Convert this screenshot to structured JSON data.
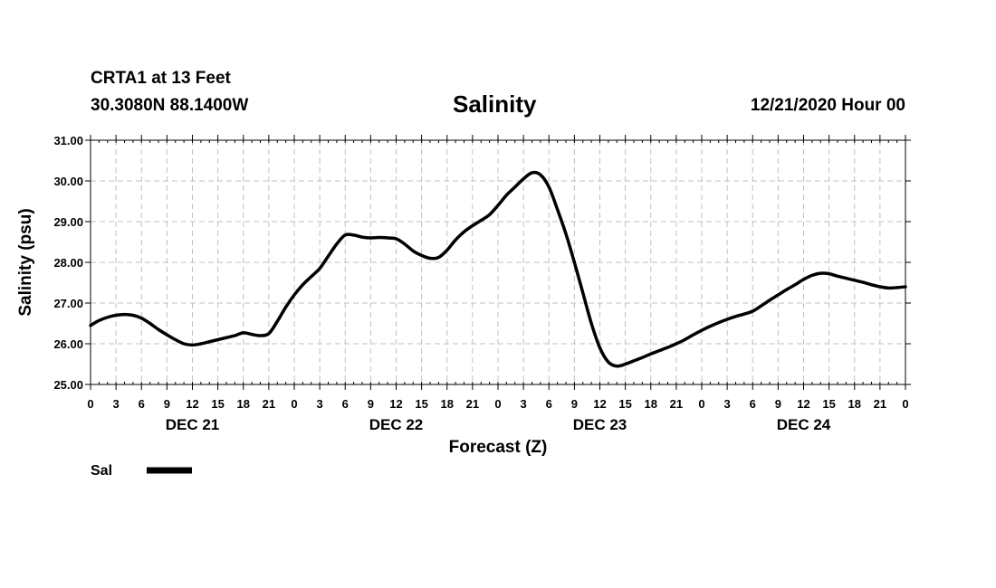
{
  "header": {
    "station": "CRTA1 at 13 Feet",
    "coords": "30.3080N 88.1400W",
    "title": "Salinity",
    "run_time": "12/21/2020 Hour 00"
  },
  "colors": {
    "line": "#000000",
    "grid": "#c0c0c0",
    "background": "#ffffff"
  },
  "chart_data": {
    "type": "line",
    "title": "Salinity",
    "xlabel": "Forecast (Z)",
    "ylabel": "Salinity (psu)",
    "xlim": [
      0,
      96
    ],
    "ylim": [
      25.0,
      31.0
    ],
    "y_ticks": [
      25.0,
      26.0,
      27.0,
      28.0,
      29.0,
      30.0,
      31.0
    ],
    "y_tick_labels": [
      "25.00",
      "26.00",
      "27.00",
      "28.00",
      "29.00",
      "30.00",
      "31.00"
    ],
    "x_tick_values": [
      0,
      3,
      6,
      9,
      12,
      15,
      18,
      21,
      24,
      27,
      30,
      33,
      36,
      39,
      42,
      45,
      48,
      51,
      54,
      57,
      60,
      63,
      66,
      69,
      72,
      75,
      78,
      81,
      84,
      87,
      90,
      93,
      96
    ],
    "x_tick_labels": [
      "0",
      "3",
      "6",
      "9",
      "12",
      "15",
      "18",
      "21",
      "0",
      "3",
      "6",
      "9",
      "12",
      "15",
      "18",
      "21",
      "0",
      "3",
      "6",
      "9",
      "12",
      "15",
      "18",
      "21",
      "0",
      "3",
      "6",
      "9",
      "12",
      "15",
      "18",
      "21",
      "0"
    ],
    "day_labels": [
      {
        "label": "DEC 21",
        "hour": 12
      },
      {
        "label": "DEC 22",
        "hour": 36
      },
      {
        "label": "DEC 23",
        "hour": 60
      },
      {
        "label": "DEC 24",
        "hour": 84
      }
    ],
    "grid": true,
    "legend": {
      "position": "bottom-left",
      "entries": [
        "Sal"
      ]
    },
    "series": [
      {
        "name": "Sal",
        "x": [
          0,
          1,
          2,
          3,
          4,
          5,
          6,
          7,
          8,
          9,
          10,
          11,
          12,
          13,
          14,
          15,
          16,
          17,
          18,
          19,
          20,
          21,
          22,
          23,
          24,
          25,
          26,
          27,
          28,
          29,
          30,
          31,
          32,
          33,
          34,
          35,
          36,
          37,
          38,
          39,
          40,
          41,
          42,
          43,
          44,
          45,
          46,
          47,
          48,
          49,
          50,
          51,
          52,
          53,
          54,
          55,
          56,
          57,
          58,
          59,
          60,
          61,
          62,
          63,
          64,
          65,
          66,
          67,
          68,
          69,
          70,
          71,
          72,
          73,
          74,
          75,
          76,
          77,
          78,
          79,
          80,
          81,
          82,
          83,
          84,
          85,
          86,
          87,
          88,
          89,
          90,
          91,
          92,
          93,
          94,
          95,
          96
        ],
        "values": [
          26.45,
          26.57,
          26.65,
          26.7,
          26.72,
          26.7,
          26.63,
          26.5,
          26.35,
          26.22,
          26.1,
          26.0,
          25.97,
          26.0,
          26.05,
          26.1,
          26.15,
          26.2,
          26.27,
          26.23,
          26.2,
          26.25,
          26.55,
          26.9,
          27.2,
          27.45,
          27.65,
          27.85,
          28.15,
          28.45,
          28.67,
          28.67,
          28.62,
          28.6,
          28.61,
          28.6,
          28.58,
          28.45,
          28.28,
          28.17,
          28.1,
          28.12,
          28.3,
          28.55,
          28.75,
          28.9,
          29.03,
          29.17,
          29.4,
          29.65,
          29.85,
          30.05,
          30.2,
          30.15,
          29.85,
          29.3,
          28.7,
          28.0,
          27.25,
          26.5,
          25.9,
          25.55,
          25.45,
          25.5,
          25.58,
          25.66,
          25.75,
          25.83,
          25.91,
          26.0,
          26.1,
          26.22,
          26.33,
          26.43,
          26.52,
          26.6,
          26.67,
          26.73,
          26.8,
          26.93,
          27.07,
          27.2,
          27.33,
          27.45,
          27.58,
          27.68,
          27.73,
          27.72,
          27.66,
          27.61,
          27.56,
          27.51,
          27.45,
          27.4,
          27.37,
          27.38,
          27.4
        ]
      }
    ]
  }
}
